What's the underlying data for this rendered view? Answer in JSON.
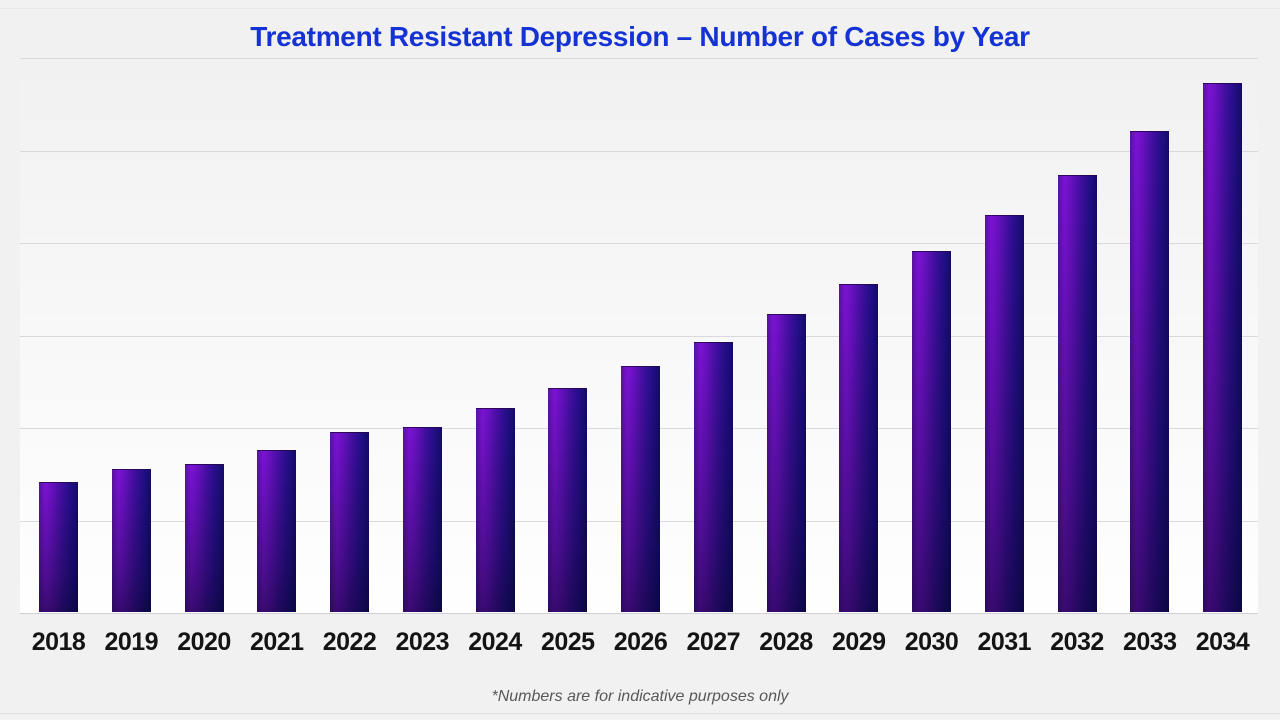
{
  "page": {
    "background_color": "#f1f1f2",
    "title": "Treatment Resistant Depression – Number of Cases by Year",
    "title_color": "#1533d4",
    "footnote": "*Numbers are for indicative purposes only",
    "footnote_color": "#58585a"
  },
  "chart_data": {
    "type": "bar",
    "title": "Treatment Resistant Depression – Number of Cases by Year",
    "categories": [
      "2018",
      "2019",
      "2020",
      "2021",
      "2022",
      "2023",
      "2024",
      "2025",
      "2026",
      "2027",
      "2028",
      "2029",
      "2030",
      "2031",
      "2032",
      "2033",
      "2034"
    ],
    "values": [
      1.39,
      1.53,
      1.59,
      1.74,
      1.93,
      1.99,
      2.19,
      2.41,
      2.65,
      2.91,
      3.21,
      3.53,
      3.89,
      4.28,
      4.71,
      5.19,
      5.71
    ],
    "value_notes": "No y-axis tick labels are shown in the chart; values are relative units where 1 unit = one horizontal gridline interval. Bars grow ~10% per year.",
    "xlabel": "",
    "ylabel": "",
    "ylim": [
      0,
      6
    ],
    "gridline_count": 7,
    "grid_on": true,
    "legend": "none",
    "grid_color": "#d9d9db",
    "axis_line_color": "#cfcfd4",
    "bar_gradient_left_color": "#7c12d4",
    "bar_gradient_right_color": "#140a66",
    "annotations": [
      "*Numbers are for indicative purposes only"
    ]
  }
}
